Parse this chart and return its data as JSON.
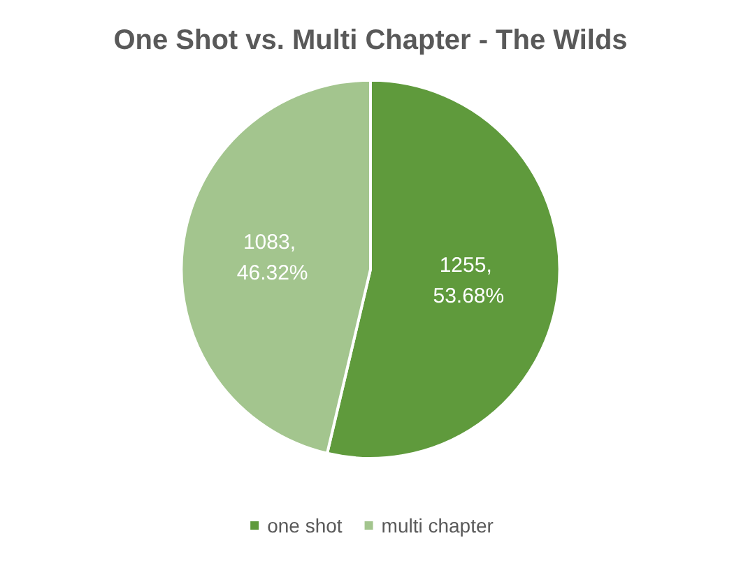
{
  "chart_data": {
    "type": "pie",
    "title": "One Shot vs. Multi Chapter - The Wilds",
    "categories": [
      "one shot",
      "multi chapter"
    ],
    "values": [
      1255,
      1083
    ],
    "colors": [
      "#5f9a3c",
      "#a3c58e"
    ],
    "value_labels": [
      "1255, 53.68%",
      "1083, 46.32%"
    ],
    "legend": "bottom"
  }
}
